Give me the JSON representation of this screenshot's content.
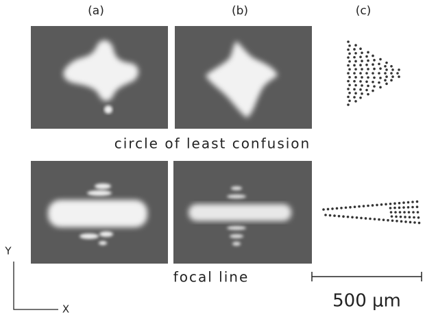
{
  "panel_labels": [
    "(a)",
    "(b)",
    "(c)"
  ],
  "top_caption": "circle of least confusion",
  "bottom_caption": "focal line",
  "scale_bar": {
    "label": "500 μm"
  },
  "axes": {
    "y": "Y",
    "x": "X"
  }
}
